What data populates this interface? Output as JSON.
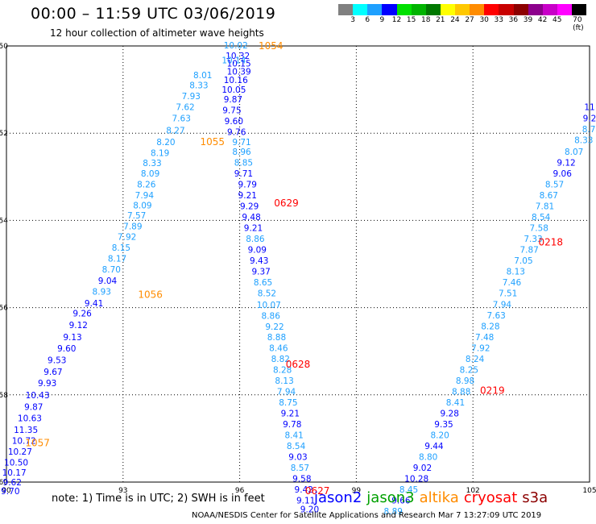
{
  "header": {
    "title": "00:00 – 11:59 UTC 03/06/2019",
    "subtitle": "12 hour collection of altimeter wave heights"
  },
  "color_scale": {
    "colors": [
      "#808080",
      "#00ffff",
      "#1ea0ff",
      "#0000ff",
      "#00e000",
      "#00b400",
      "#007800",
      "#ffff00",
      "#ffc800",
      "#ff8c00",
      "#ff0000",
      "#c80000",
      "#8c0000",
      "#8c008c",
      "#c800c8",
      "#ff00ff",
      "#000000"
    ],
    "labels": [
      "3",
      "6",
      "9",
      "12",
      "15",
      "18",
      "21",
      "24",
      "27",
      "30",
      "33",
      "36",
      "39",
      "42",
      "45",
      "70 (ft)"
    ]
  },
  "map": {
    "x_ticks": [
      "90",
      "93",
      "96",
      "99",
      "102",
      "105"
    ],
    "y_ticks": [
      "-50",
      "-52",
      "-54",
      "-56",
      "-58",
      "-60"
    ],
    "grid": true
  },
  "tracks": [
    {
      "name": "altika-1057",
      "satellite": "altika",
      "time_labels": [
        {
          "text": "1054",
          "lon": 96.8,
          "lat": -50.0
        },
        {
          "text": "1055",
          "lon": 95.3,
          "lat": -52.2
        },
        {
          "text": "1056",
          "lon": 93.7,
          "lat": -55.7
        },
        {
          "text": "1057",
          "lon": 90.8,
          "lat": -59.1
        }
      ],
      "points": [
        {
          "v": "10.02",
          "lon": 95.9,
          "lat": -49.98,
          "c": "#1ea0ff"
        },
        {
          "v": "10.32",
          "lon": 95.95,
          "lat": -50.22,
          "c": "#0000ff"
        },
        {
          "v": "10.14",
          "lon": 95.85,
          "lat": -50.32,
          "c": "#1ea0ff"
        },
        {
          "v": "10.15",
          "lon": 95.98,
          "lat": -50.4,
          "c": "#0000ff"
        },
        {
          "v": "10.39",
          "lon": 95.98,
          "lat": -50.58,
          "c": "#0000ff"
        },
        {
          "v": "8.01",
          "lon": 95.05,
          "lat": -50.67,
          "c": "#1ea0ff"
        },
        {
          "v": "10.16",
          "lon": 95.9,
          "lat": -50.78,
          "c": "#0000ff"
        },
        {
          "v": "8.33",
          "lon": 94.95,
          "lat": -50.9,
          "c": "#1ea0ff"
        },
        {
          "v": "10.05",
          "lon": 95.85,
          "lat": -51.0,
          "c": "#0000ff"
        },
        {
          "v": "7.93",
          "lon": 94.75,
          "lat": -51.15,
          "c": "#1ea0ff"
        },
        {
          "v": "9.87",
          "lon": 95.83,
          "lat": -51.22,
          "c": "#0000ff"
        },
        {
          "v": "7.62",
          "lon": 94.6,
          "lat": -51.4,
          "c": "#1ea0ff"
        },
        {
          "v": "9.75",
          "lon": 95.8,
          "lat": -51.47,
          "c": "#0000ff"
        },
        {
          "v": "7.63",
          "lon": 94.5,
          "lat": -51.65,
          "c": "#1ea0ff"
        },
        {
          "v": "9.60",
          "lon": 95.85,
          "lat": -51.72,
          "c": "#0000ff"
        },
        {
          "v": "8.27",
          "lon": 94.35,
          "lat": -51.93,
          "c": "#1ea0ff"
        },
        {
          "v": "9.76",
          "lon": 95.92,
          "lat": -51.97,
          "c": "#0000ff"
        },
        {
          "v": "8.20",
          "lon": 94.1,
          "lat": -52.2,
          "c": "#1ea0ff"
        },
        {
          "v": "8.19",
          "lon": 93.95,
          "lat": -52.45,
          "c": "#1ea0ff"
        },
        {
          "v": "8.33",
          "lon": 93.75,
          "lat": -52.68,
          "c": "#1ea0ff"
        },
        {
          "v": "8.09",
          "lon": 93.7,
          "lat": -52.92,
          "c": "#1ea0ff"
        },
        {
          "v": "8.26",
          "lon": 93.6,
          "lat": -53.17,
          "c": "#1ea0ff"
        },
        {
          "v": "7.94",
          "lon": 93.55,
          "lat": -53.42,
          "c": "#1ea0ff"
        },
        {
          "v": "8.09",
          "lon": 93.5,
          "lat": -53.65,
          "c": "#1ea0ff"
        },
        {
          "v": "7.57",
          "lon": 93.35,
          "lat": -53.88,
          "c": "#1ea0ff"
        },
        {
          "v": "7.89",
          "lon": 93.25,
          "lat": -54.13,
          "c": "#1ea0ff"
        },
        {
          "v": "7.92",
          "lon": 93.1,
          "lat": -54.37,
          "c": "#1ea0ff"
        },
        {
          "v": "8.15",
          "lon": 92.95,
          "lat": -54.62,
          "c": "#1ea0ff"
        },
        {
          "v": "8.17",
          "lon": 92.85,
          "lat": -54.87,
          "c": "#1ea0ff"
        },
        {
          "v": "8.70",
          "lon": 92.7,
          "lat": -55.12,
          "c": "#1ea0ff"
        },
        {
          "v": "9.04",
          "lon": 92.6,
          "lat": -55.38,
          "c": "#0000ff"
        },
        {
          "v": "8.93",
          "lon": 92.45,
          "lat": -55.63,
          "c": "#1ea0ff"
        },
        {
          "v": "9.41",
          "lon": 92.25,
          "lat": -55.9,
          "c": "#0000ff"
        },
        {
          "v": "9.26",
          "lon": 91.95,
          "lat": -56.13,
          "c": "#0000ff"
        },
        {
          "v": "9.12",
          "lon": 91.85,
          "lat": -56.4,
          "c": "#0000ff"
        },
        {
          "v": "9.13",
          "lon": 91.7,
          "lat": -56.67,
          "c": "#0000ff"
        },
        {
          "v": "9.60",
          "lon": 91.55,
          "lat": -56.93,
          "c": "#0000ff"
        },
        {
          "v": "9.53",
          "lon": 91.3,
          "lat": -57.2,
          "c": "#0000ff"
        },
        {
          "v": "9.67",
          "lon": 91.2,
          "lat": -57.47,
          "c": "#0000ff"
        },
        {
          "v": "9.93",
          "lon": 91.05,
          "lat": -57.73,
          "c": "#0000ff"
        },
        {
          "v": "10.43",
          "lon": 90.8,
          "lat": -58.0,
          "c": "#0000ff"
        },
        {
          "v": "9.87",
          "lon": 90.7,
          "lat": -58.27,
          "c": "#0000ff"
        },
        {
          "v": "10.63",
          "lon": 90.6,
          "lat": -58.53,
          "c": "#0000ff"
        },
        {
          "v": "11.35",
          "lon": 90.5,
          "lat": -58.8,
          "c": "#0000ff"
        },
        {
          "v": "10.72",
          "lon": 90.45,
          "lat": -59.05,
          "c": "#0000ff"
        },
        {
          "v": "10.27",
          "lon": 90.35,
          "lat": -59.3,
          "c": "#0000ff"
        },
        {
          "v": "10.50",
          "lon": 90.25,
          "lat": -59.55,
          "c": "#0000ff"
        },
        {
          "v": "10.17",
          "lon": 90.2,
          "lat": -59.78,
          "c": "#0000ff"
        },
        {
          "v": "9.62",
          "lon": 90.15,
          "lat": -60.0,
          "c": "#0000ff"
        },
        {
          "v": "9.70",
          "lon": 90.1,
          "lat": -60.2,
          "c": "#0000ff"
        }
      ]
    },
    {
      "name": "cryosat-0629",
      "satellite": "cryosat",
      "time_labels": [
        {
          "text": "0629",
          "lon": 97.2,
          "lat": -53.6
        },
        {
          "text": "0628",
          "lon": 97.5,
          "lat": -57.3
        },
        {
          "text": "0627",
          "lon": 98.0,
          "lat": -60.2
        }
      ],
      "points": [
        {
          "v": "9.71",
          "lon": 96.05,
          "lat": -52.2,
          "c": "#1ea0ff"
        },
        {
          "v": "8.96",
          "lon": 96.05,
          "lat": -52.42,
          "c": "#1ea0ff"
        },
        {
          "v": "8.85",
          "lon": 96.1,
          "lat": -52.67,
          "c": "#1ea0ff"
        },
        {
          "v": "9.71",
          "lon": 96.1,
          "lat": -52.92,
          "c": "#0000ff"
        },
        {
          "v": "9.79",
          "lon": 96.2,
          "lat": -53.17,
          "c": "#0000ff"
        },
        {
          "v": "9.21",
          "lon": 96.2,
          "lat": -53.42,
          "c": "#0000ff"
        },
        {
          "v": "9.29",
          "lon": 96.25,
          "lat": -53.67,
          "c": "#0000ff"
        },
        {
          "v": "9.48",
          "lon": 96.3,
          "lat": -53.92,
          "c": "#0000ff"
        },
        {
          "v": "9.21",
          "lon": 96.35,
          "lat": -54.17,
          "c": "#0000ff"
        },
        {
          "v": "8.86",
          "lon": 96.4,
          "lat": -54.42,
          "c": "#1ea0ff"
        },
        {
          "v": "9.09",
          "lon": 96.45,
          "lat": -54.67,
          "c": "#0000ff"
        },
        {
          "v": "9.43",
          "lon": 96.5,
          "lat": -54.92,
          "c": "#0000ff"
        },
        {
          "v": "9.37",
          "lon": 96.55,
          "lat": -55.17,
          "c": "#0000ff"
        },
        {
          "v": "8.65",
          "lon": 96.6,
          "lat": -55.42,
          "c": "#1ea0ff"
        },
        {
          "v": "8.52",
          "lon": 96.7,
          "lat": -55.67,
          "c": "#1ea0ff"
        },
        {
          "v": "10.07",
          "lon": 96.75,
          "lat": -55.93,
          "c": "#1ea0ff"
        },
        {
          "v": "8.86",
          "lon": 96.8,
          "lat": -56.18,
          "c": "#1ea0ff"
        },
        {
          "v": "9.22",
          "lon": 96.9,
          "lat": -56.43,
          "c": "#1ea0ff"
        },
        {
          "v": "8.88",
          "lon": 96.95,
          "lat": -56.67,
          "c": "#1ea0ff"
        },
        {
          "v": "8.46",
          "lon": 97.0,
          "lat": -56.92,
          "c": "#1ea0ff"
        },
        {
          "v": "8.82",
          "lon": 97.05,
          "lat": -57.17,
          "c": "#1ea0ff"
        },
        {
          "v": "8.28",
          "lon": 97.1,
          "lat": -57.42,
          "c": "#1ea0ff"
        },
        {
          "v": "8.13",
          "lon": 97.15,
          "lat": -57.67,
          "c": "#1ea0ff"
        },
        {
          "v": "7.94",
          "lon": 97.2,
          "lat": -57.92,
          "c": "#1ea0ff"
        },
        {
          "v": "8.75",
          "lon": 97.25,
          "lat": -58.17,
          "c": "#1ea0ff"
        },
        {
          "v": "9.21",
          "lon": 97.3,
          "lat": -58.42,
          "c": "#0000ff"
        },
        {
          "v": "9.78",
          "lon": 97.35,
          "lat": -58.67,
          "c": "#0000ff"
        },
        {
          "v": "8.41",
          "lon": 97.4,
          "lat": -58.92,
          "c": "#1ea0ff"
        },
        {
          "v": "8.54",
          "lon": 97.45,
          "lat": -59.17,
          "c": "#1ea0ff"
        },
        {
          "v": "9.03",
          "lon": 97.5,
          "lat": -59.42,
          "c": "#0000ff"
        },
        {
          "v": "8.57",
          "lon": 97.55,
          "lat": -59.67,
          "c": "#1ea0ff"
        },
        {
          "v": "9.58",
          "lon": 97.6,
          "lat": -59.92,
          "c": "#0000ff"
        },
        {
          "v": "9.42",
          "lon": 97.65,
          "lat": -60.17,
          "c": "#0000ff"
        },
        {
          "v": "9.11",
          "lon": 97.7,
          "lat": -60.42,
          "c": "#0000ff"
        },
        {
          "v": "9.20",
          "lon": 97.8,
          "lat": -60.62,
          "c": "#0000ff"
        }
      ]
    },
    {
      "name": "cryosat-0219",
      "satellite": "cryosat",
      "time_labels": [
        {
          "text": "0218",
          "lon": 104.0,
          "lat": -54.5
        },
        {
          "text": "0219",
          "lon": 102.5,
          "lat": -57.9
        }
      ],
      "points": [
        {
          "v": "11",
          "lon": 105.0,
          "lat": -51.4,
          "c": "#0000ff"
        },
        {
          "v": "9.2",
          "lon": 105.0,
          "lat": -51.65,
          "c": "#0000ff"
        },
        {
          "v": "8.70",
          "lon": 105.05,
          "lat": -51.9,
          "c": "#1ea0ff"
        },
        {
          "v": "8.33",
          "lon": 104.85,
          "lat": -52.15,
          "c": "#1ea0ff"
        },
        {
          "v": "8.07",
          "lon": 104.6,
          "lat": -52.42,
          "c": "#1ea0ff"
        },
        {
          "v": "9.12",
          "lon": 104.4,
          "lat": -52.67,
          "c": "#0000ff"
        },
        {
          "v": "9.06",
          "lon": 104.3,
          "lat": -52.92,
          "c": "#0000ff"
        },
        {
          "v": "8.57",
          "lon": 104.1,
          "lat": -53.17,
          "c": "#1ea0ff"
        },
        {
          "v": "8.67",
          "lon": 103.95,
          "lat": -53.42,
          "c": "#1ea0ff"
        },
        {
          "v": "7.81",
          "lon": 103.85,
          "lat": -53.67,
          "c": "#1ea0ff"
        },
        {
          "v": "8.54",
          "lon": 103.75,
          "lat": -53.92,
          "c": "#1ea0ff"
        },
        {
          "v": "7.58",
          "lon": 103.7,
          "lat": -54.17,
          "c": "#1ea0ff"
        },
        {
          "v": "7.33",
          "lon": 103.55,
          "lat": -54.42,
          "c": "#1ea0ff"
        },
        {
          "v": "7.87",
          "lon": 103.45,
          "lat": -54.67,
          "c": "#1ea0ff"
        },
        {
          "v": "7.05",
          "lon": 103.3,
          "lat": -54.92,
          "c": "#1ea0ff"
        },
        {
          "v": "8.13",
          "lon": 103.1,
          "lat": -55.17,
          "c": "#1ea0ff"
        },
        {
          "v": "7.46",
          "lon": 103.0,
          "lat": -55.42,
          "c": "#1ea0ff"
        },
        {
          "v": "7.51",
          "lon": 102.9,
          "lat": -55.67,
          "c": "#1ea0ff"
        },
        {
          "v": "7.94",
          "lon": 102.75,
          "lat": -55.92,
          "c": "#1ea0ff"
        },
        {
          "v": "7.63",
          "lon": 102.6,
          "lat": -56.17,
          "c": "#1ea0ff"
        },
        {
          "v": "8.28",
          "lon": 102.45,
          "lat": -56.42,
          "c": "#1ea0ff"
        },
        {
          "v": "7.48",
          "lon": 102.3,
          "lat": -56.67,
          "c": "#1ea0ff"
        },
        {
          "v": "7.92",
          "lon": 102.2,
          "lat": -56.92,
          "c": "#1ea0ff"
        },
        {
          "v": "8.24",
          "lon": 102.05,
          "lat": -57.17,
          "c": "#1ea0ff"
        },
        {
          "v": "8.25",
          "lon": 101.9,
          "lat": -57.42,
          "c": "#1ea0ff"
        },
        {
          "v": "8.98",
          "lon": 101.8,
          "lat": -57.67,
          "c": "#1ea0ff"
        },
        {
          "v": "8.88",
          "lon": 101.7,
          "lat": -57.92,
          "c": "#1ea0ff"
        },
        {
          "v": "8.41",
          "lon": 101.55,
          "lat": -58.17,
          "c": "#1ea0ff"
        },
        {
          "v": "9.28",
          "lon": 101.4,
          "lat": -58.42,
          "c": "#0000ff"
        },
        {
          "v": "9.35",
          "lon": 101.25,
          "lat": -58.67,
          "c": "#0000ff"
        },
        {
          "v": "8.20",
          "lon": 101.15,
          "lat": -58.92,
          "c": "#1ea0ff"
        },
        {
          "v": "9.44",
          "lon": 101.0,
          "lat": -59.17,
          "c": "#0000ff"
        },
        {
          "v": "8.80",
          "lon": 100.85,
          "lat": -59.42,
          "c": "#1ea0ff"
        },
        {
          "v": "9.02",
          "lon": 100.7,
          "lat": -59.67,
          "c": "#0000ff"
        },
        {
          "v": "10.28",
          "lon": 100.55,
          "lat": -59.92,
          "c": "#0000ff"
        },
        {
          "v": "8.45",
          "lon": 100.35,
          "lat": -60.17,
          "c": "#1ea0ff"
        },
        {
          "v": "9.66",
          "lon": 100.15,
          "lat": -60.42,
          "c": "#0000ff"
        },
        {
          "v": "8.89",
          "lon": 99.95,
          "lat": -60.67,
          "c": "#1ea0ff"
        }
      ]
    }
  ],
  "notes": {
    "text": "note: 1) Time is in UTC; 2) SWH is in feet"
  },
  "legend": [
    {
      "label": "jason2",
      "color": "#0000ff"
    },
    {
      "label": "jason3",
      "color": "#00a000"
    },
    {
      "label": "altika",
      "color": "#ff8c00"
    },
    {
      "label": "cryosat",
      "color": "#ff0000"
    },
    {
      "label": "s3a",
      "color": "#8c0000"
    }
  ],
  "time_label_colors": {
    "altika": "#ff8c00",
    "cryosat": "#ff0000"
  },
  "footer": {
    "text": "NOAA/NESDIS Center for Satellite Applications and Research    Mar  7 13:27:09 UTC 2019"
  }
}
